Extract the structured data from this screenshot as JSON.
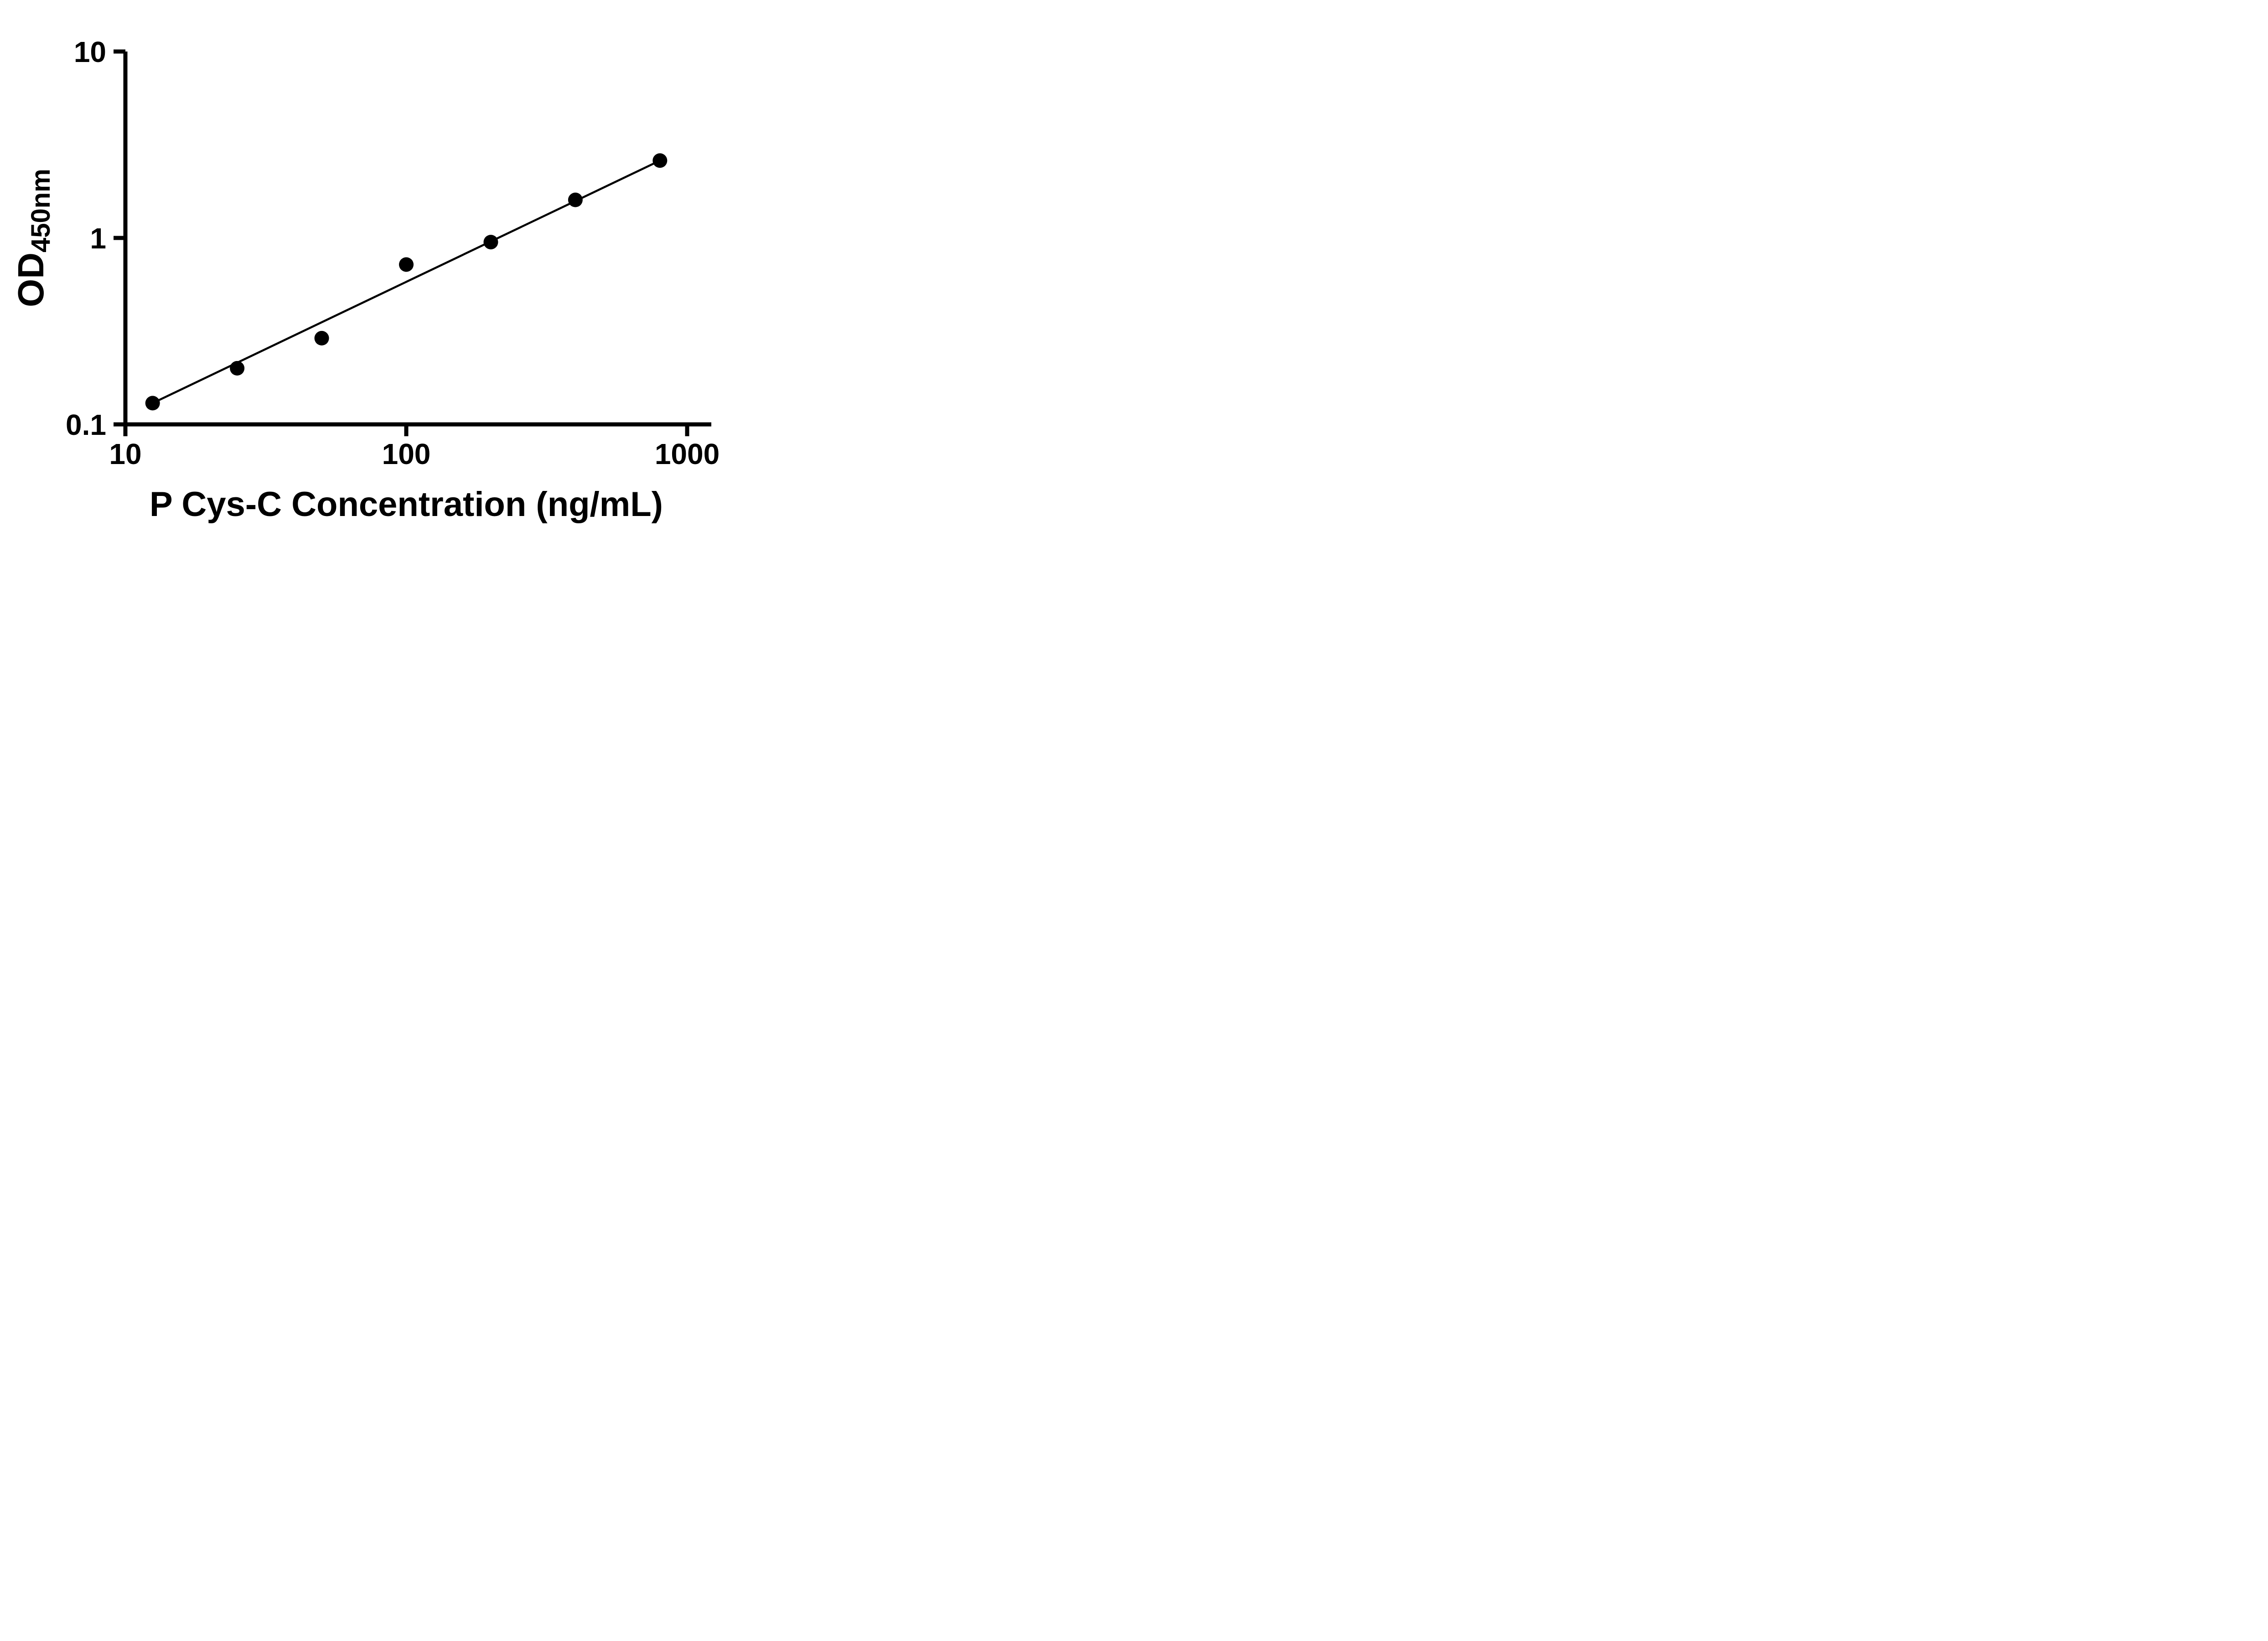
{
  "figure": {
    "background": "#ffffff",
    "foreground": "#000000"
  },
  "chart_data": {
    "type": "scatter",
    "title": "",
    "x": [
      12.5,
      25,
      50,
      100,
      200,
      400,
      800
    ],
    "y": [
      0.13,
      0.2,
      0.29,
      0.72,
      0.95,
      1.6,
      2.6
    ],
    "xlabel": "P Cys-C Concentration (ng/mL)",
    "ylabel": "OD450nm",
    "ylabel_parts": {
      "main": "OD",
      "sub": "450nm"
    },
    "xscale": "log",
    "yscale": "log",
    "xlim": [
      10,
      1000
    ],
    "ylim": [
      0.1,
      10
    ],
    "x_ticks": [
      {
        "value": 10,
        "label": "10"
      },
      {
        "value": 100,
        "label": "100"
      },
      {
        "value": 1000,
        "label": "1000"
      }
    ],
    "y_ticks": [
      {
        "value": 10,
        "label": "10"
      },
      {
        "value": 1,
        "label": "1"
      },
      {
        "value": 0.1,
        "label": "0.1"
      }
    ],
    "grid": false,
    "legend": false,
    "marker": {
      "shape": "circle",
      "color": "#000000"
    },
    "trendline": {
      "show": true,
      "type": "power",
      "from_point": 0,
      "to_point": 6,
      "color": "#000000"
    },
    "axis_color": "#000000"
  }
}
